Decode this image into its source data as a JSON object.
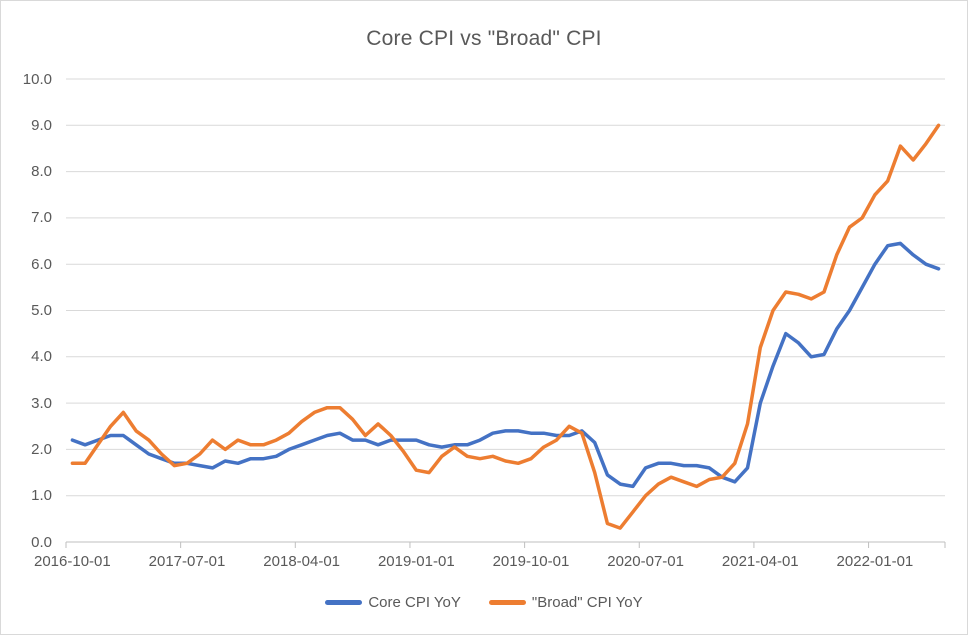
{
  "chart_data": {
    "type": "line",
    "title": "Core CPI vs \"Broad\" CPI",
    "xlabel": "",
    "ylabel": "",
    "ylim": [
      0,
      10
    ],
    "grid": "horizontal",
    "legend_position": "bottom",
    "y_tick_labels": [
      "10.0",
      "9.0",
      "8.0",
      "7.0",
      "6.0",
      "5.0",
      "4.0",
      "3.0",
      "2.0",
      "1.0",
      "0.0"
    ],
    "x_tick_labels": [
      "2016-10-01",
      "2017-07-01",
      "2018-04-01",
      "2019-01-01",
      "2019-10-01",
      "2020-07-01",
      "2021-04-01",
      "2022-01-01"
    ],
    "x_tick_interval_months": 9,
    "x_frequency": "monthly",
    "x_range_start": "2016-10-01",
    "x_range_end": "2022-06-01",
    "series": [
      {
        "name": "Core CPI YoY",
        "color": "#4472C4",
        "values": [
          2.2,
          2.1,
          2.2,
          2.3,
          2.3,
          2.1,
          1.9,
          1.8,
          1.7,
          1.7,
          1.65,
          1.6,
          1.75,
          1.7,
          1.8,
          1.8,
          1.85,
          2.0,
          2.1,
          2.2,
          2.3,
          2.35,
          2.2,
          2.2,
          2.1,
          2.2,
          2.2,
          2.2,
          2.1,
          2.05,
          2.1,
          2.1,
          2.2,
          2.35,
          2.4,
          2.4,
          2.35,
          2.35,
          2.3,
          2.3,
          2.4,
          2.15,
          1.45,
          1.25,
          1.2,
          1.6,
          1.7,
          1.7,
          1.65,
          1.65,
          1.6,
          1.4,
          1.3,
          1.6,
          3.0,
          3.8,
          4.5,
          4.3,
          4.0,
          4.05,
          4.6,
          5.0,
          5.5,
          6.0,
          6.4,
          6.45,
          6.2,
          6.0,
          5.9
        ]
      },
      {
        "name": "\"Broad\" CPI YoY",
        "color": "#ED7D31",
        "values": [
          1.7,
          1.7,
          2.1,
          2.5,
          2.8,
          2.4,
          2.2,
          1.9,
          1.65,
          1.7,
          1.9,
          2.2,
          2.0,
          2.2,
          2.1,
          2.1,
          2.2,
          2.35,
          2.6,
          2.8,
          2.9,
          2.9,
          2.65,
          2.3,
          2.55,
          2.3,
          1.95,
          1.55,
          1.5,
          1.85,
          2.05,
          1.85,
          1.8,
          1.85,
          1.75,
          1.7,
          1.8,
          2.05,
          2.2,
          2.5,
          2.35,
          1.5,
          0.4,
          0.3,
          0.65,
          1.0,
          1.25,
          1.4,
          1.3,
          1.2,
          1.35,
          1.4,
          1.7,
          2.55,
          4.2,
          5.0,
          5.4,
          5.35,
          5.25,
          5.4,
          6.2,
          6.8,
          7.0,
          7.5,
          7.8,
          8.55,
          8.25,
          8.6,
          9.0
        ]
      }
    ]
  },
  "colors": {
    "background": "#FFFFFF",
    "border": "#D9D9D9",
    "gridline": "#D9D9D9",
    "axis_line": "#BFBFBF",
    "title_text": "#595959",
    "axis_text": "#595959",
    "legend_text": "#595959"
  }
}
